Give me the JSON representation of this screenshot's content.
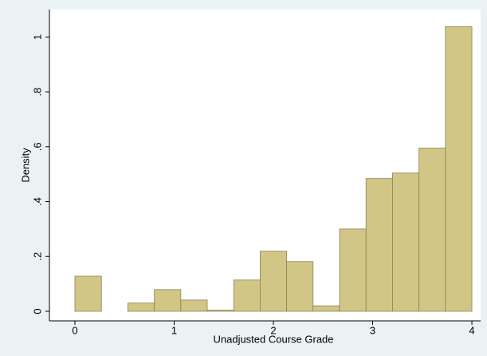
{
  "chart_data": {
    "type": "histogram",
    "x_label": "Unadjusted Course Grade",
    "y_label": "Density",
    "bins": [
      0,
      0.2667,
      0.5333,
      0.8,
      1.0667,
      1.3333,
      1.6,
      1.8667,
      2.1333,
      2.4,
      2.6667,
      2.9333,
      3.2,
      3.4667,
      3.7333,
      4
    ],
    "values": [
      0.128,
      0,
      0.03,
      0.079,
      0.041,
      0.004,
      0.114,
      0.219,
      0.181,
      0.02,
      0.3,
      0.484,
      0.504,
      0.595,
      1.038
    ],
    "color": "#d2c687",
    "xlim": [
      -0.257,
      4.088
    ],
    "ylim": [
      -0.035,
      1.1
    ],
    "xticks": [
      0,
      1,
      2,
      3,
      4
    ],
    "yticks": [
      0,
      {
        "value": 0.2,
        "label": ".2"
      },
      {
        "value": 0.4,
        "label": ".4"
      },
      {
        "value": 0.6,
        "label": ".6"
      },
      {
        "value": 0.8,
        "label": ".8"
      },
      1
    ],
    "grid": false
  }
}
